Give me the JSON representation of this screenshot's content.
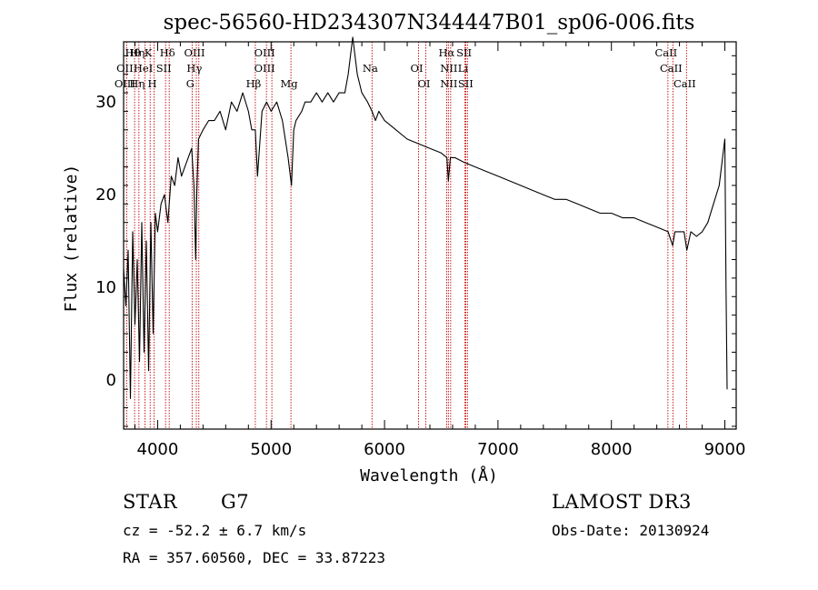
{
  "chart_data": {
    "type": "line",
    "title": "spec-56560-HD234307N344447B01_sp06-006.fits",
    "xlabel": "Wavelength (Å)",
    "ylabel": "Flux (relative)",
    "xlim": [
      3700,
      9100
    ],
    "ylim": [
      -5.3,
      36.5
    ],
    "xticks": [
      4000,
      5000,
      6000,
      7000,
      8000,
      9000
    ],
    "yticks": [
      0,
      10,
      20,
      30
    ],
    "grid": false,
    "series": [
      {
        "name": "spectrum",
        "x": [
          3700,
          3720,
          3740,
          3760,
          3780,
          3800,
          3820,
          3840,
          3860,
          3880,
          3900,
          3920,
          3940,
          3960,
          3980,
          4000,
          4030,
          4060,
          4090,
          4120,
          4150,
          4180,
          4210,
          4240,
          4270,
          4300,
          4320,
          4335,
          4345,
          4360,
          4400,
          4450,
          4500,
          4550,
          4600,
          4650,
          4700,
          4750,
          4800,
          4830,
          4861,
          4880,
          4920,
          4960,
          5000,
          5050,
          5100,
          5150,
          5180,
          5200,
          5220,
          5270,
          5300,
          5350,
          5400,
          5450,
          5500,
          5550,
          5600,
          5650,
          5680,
          5700,
          5720,
          5740,
          5760,
          5780,
          5800,
          5850,
          5890,
          5920,
          5950,
          6000,
          6100,
          6200,
          6300,
          6400,
          6500,
          6550,
          6563,
          6580,
          6620,
          6700,
          6800,
          6900,
          7000,
          7100,
          7200,
          7300,
          7400,
          7500,
          7600,
          7700,
          7800,
          7900,
          8000,
          8100,
          8200,
          8300,
          8400,
          8500,
          8540,
          8560,
          8600,
          8640,
          8665,
          8700,
          8750,
          8800,
          8850,
          8900,
          8950,
          8980,
          9000,
          9010,
          9020
        ],
        "y": [
          12,
          8,
          14,
          -2,
          16,
          6,
          13,
          2,
          17,
          3,
          15,
          1,
          17,
          5,
          18,
          16,
          19,
          20,
          17,
          22,
          21,
          24,
          22,
          23,
          24,
          25,
          21,
          13,
          20,
          26,
          27,
          28,
          28,
          29,
          27,
          30,
          29,
          31,
          29,
          27,
          27,
          22,
          29,
          30,
          29,
          30,
          28,
          24,
          21,
          27,
          28,
          29,
          30,
          30,
          31,
          30,
          31,
          30,
          31,
          31,
          33,
          35,
          37,
          35,
          33,
          32,
          31,
          30,
          29,
          28,
          29,
          28,
          27,
          26,
          25.5,
          25,
          24.5,
          24,
          21.5,
          24,
          24,
          23.5,
          23,
          22.5,
          22,
          21.5,
          21,
          20.5,
          20,
          19.5,
          19.5,
          19,
          18.5,
          18,
          18,
          17.5,
          17.5,
          17,
          16.5,
          16,
          14.5,
          16,
          16,
          16,
          14,
          16,
          15.5,
          16,
          17,
          19,
          21,
          24,
          26,
          10,
          -1
        ]
      }
    ],
    "lines_top": [
      {
        "x": 3797,
        "label": "Hθ"
      },
      {
        "x": 3835,
        "label": "Hη"
      },
      {
        "x": 3934,
        "label": "K"
      },
      {
        "x": 3969,
        "label": ""
      },
      {
        "x": 4102,
        "label": "Hδ"
      },
      {
        "x": 4341,
        "label": "OIII"
      },
      {
        "x": 4959,
        "label": "OIII"
      },
      {
        "x": 5007,
        "label": ""
      },
      {
        "x": 6563,
        "label": "Hα"
      },
      {
        "x": 6717,
        "label": "SII"
      },
      {
        "x": 8498,
        "label": "CaII"
      },
      {
        "x": 8542,
        "label": ""
      }
    ],
    "lines_mid": [
      {
        "x": 3727,
        "label": "OII"
      },
      {
        "x": 3889,
        "label": "HeI"
      },
      {
        "x": 4070,
        "label": "SII"
      },
      {
        "x": 4340,
        "label": "Hγ"
      },
      {
        "x": 4959,
        "label": "OIII"
      },
      {
        "x": 5890,
        "label": "Na"
      },
      {
        "x": 6300,
        "label": "OI"
      },
      {
        "x": 6583,
        "label": "NII"
      },
      {
        "x": 6708,
        "label": "Li"
      },
      {
        "x": 8542,
        "label": "CaII"
      }
    ],
    "lines_low": [
      {
        "x": 3727,
        "label": "OIII"
      },
      {
        "x": 3835,
        "label": "Hη"
      },
      {
        "x": 3969,
        "label": "H"
      },
      {
        "x": 4304,
        "label": "G"
      },
      {
        "x": 4861,
        "label": "Hβ"
      },
      {
        "x": 5175,
        "label": "Mg"
      },
      {
        "x": 6364,
        "label": "OI"
      },
      {
        "x": 6583,
        "label": "NII"
      },
      {
        "x": 6731,
        "label": "SII"
      },
      {
        "x": 8662,
        "label": "CaII"
      }
    ],
    "line_positions": [
      3727,
      3797,
      3835,
      3889,
      3934,
      3969,
      4070,
      4102,
      4304,
      4341,
      4363,
      4861,
      4959,
      5007,
      5175,
      5890,
      6300,
      6364,
      6548,
      6563,
      6583,
      6708,
      6717,
      6731,
      8498,
      8542,
      8662
    ]
  },
  "info": {
    "class": "STAR",
    "subclass": "G7",
    "survey": "LAMOST DR3",
    "cz": "cz = -52.2 ± 6.7 km/s",
    "obsdate": "Obs-Date: 20130924",
    "radec": "RA = 357.60560, DEC =  33.87223"
  },
  "colors": {
    "spectrum": "#000000",
    "line_marker": "#c00000",
    "axis": "#000000"
  }
}
